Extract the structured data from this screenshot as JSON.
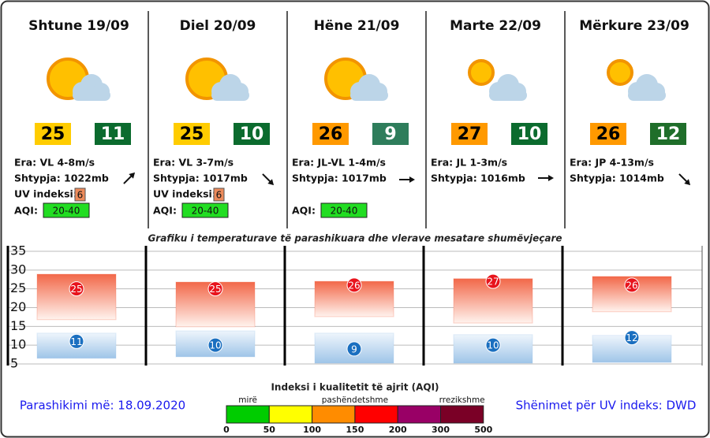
{
  "chart_data": {
    "type": "range",
    "title": "Grafiku i temperaturave të parashikuara dhe vlerave mesatare shumëvjeçare",
    "categories": [
      "Shtune 19/09",
      "Diel 20/09",
      "Hëne 21/09",
      "Marte 22/09",
      "Mërkure 23/09"
    ],
    "series": [
      {
        "values": [
          25,
          25,
          26,
          27,
          26
        ],
        "color": "#e8141c",
        "box_colors": [
          "#ffcc00",
          "#ffcc00",
          "#ff9900",
          "#ff9900",
          "#ff9900"
        ],
        "text_color": "#000000"
      },
      {
        "values": [
          11,
          10,
          9,
          10,
          12
        ],
        "color": "#1a6fc0",
        "box_colors": [
          "#0b6b2e",
          "#0b6b2e",
          "#2e7d5b",
          "#0b6b2e",
          "#1f6e2a"
        ],
        "text_color": "#ffffff"
      }
    ],
    "bands": [
      {
        "low": [
          16.8,
          14.9,
          17.6,
          15.9,
          18.9
        ],
        "high": [
          28.9,
          26.8,
          27,
          27.7,
          28.3
        ],
        "color": "#f26849"
      },
      {
        "low": [
          6.5,
          6.9,
          5.2,
          5.2,
          5.4
        ],
        "high": [
          13.2,
          13.8,
          13.2,
          12.8,
          12.6
        ],
        "color": "#9fc5e8"
      }
    ],
    "ylim": [
      5,
      35
    ],
    "yticks": [
      5,
      10,
      15,
      20,
      25,
      30,
      35
    ],
    "grid": true
  },
  "uv_label": "UV indeksi:",
  "aqi_label": "AQI:",
  "days": [
    {
      "wind": "Era: VL 4-8m/s",
      "pressure": "Shtypja: 1022mb",
      "uv": 6,
      "aqi": "20-40"
    },
    {
      "wind": "Era: VL 3-7m/s",
      "pressure": "Shtypja: 1017mb",
      "uv": 6,
      "aqi": "20-40"
    },
    {
      "wind": "Era: JL-VL 1-4m/s",
      "pressure": "Shtypja: 1017mb",
      "aqi": "20-40"
    },
    {
      "wind": "Era: JL 1-3m/s",
      "pressure": "Shtypja: 1016mb"
    },
    {
      "wind": "Era: JP 4-13m/s",
      "pressure": "Shtypja: 1014mb"
    }
  ],
  "uv_color": "#ec8a5a",
  "aqi_color": "#22dd22",
  "aqi_scale": {
    "title": "Indeksi i kualitetit të ajrit (AQI)",
    "labels": [
      "mirë",
      "pashëndetshme",
      "rrezikshme"
    ],
    "ticks": [
      0,
      50,
      100,
      150,
      200,
      300,
      500
    ],
    "colors": [
      "#00cc00",
      "#ffff00",
      "#ff8c00",
      "#ff0000",
      "#990066",
      "#7a0026"
    ]
  },
  "forecast_date": "Parashikimi më: 18.09.2020",
  "uv_source": "Shënimet për UV indeks: DWD"
}
